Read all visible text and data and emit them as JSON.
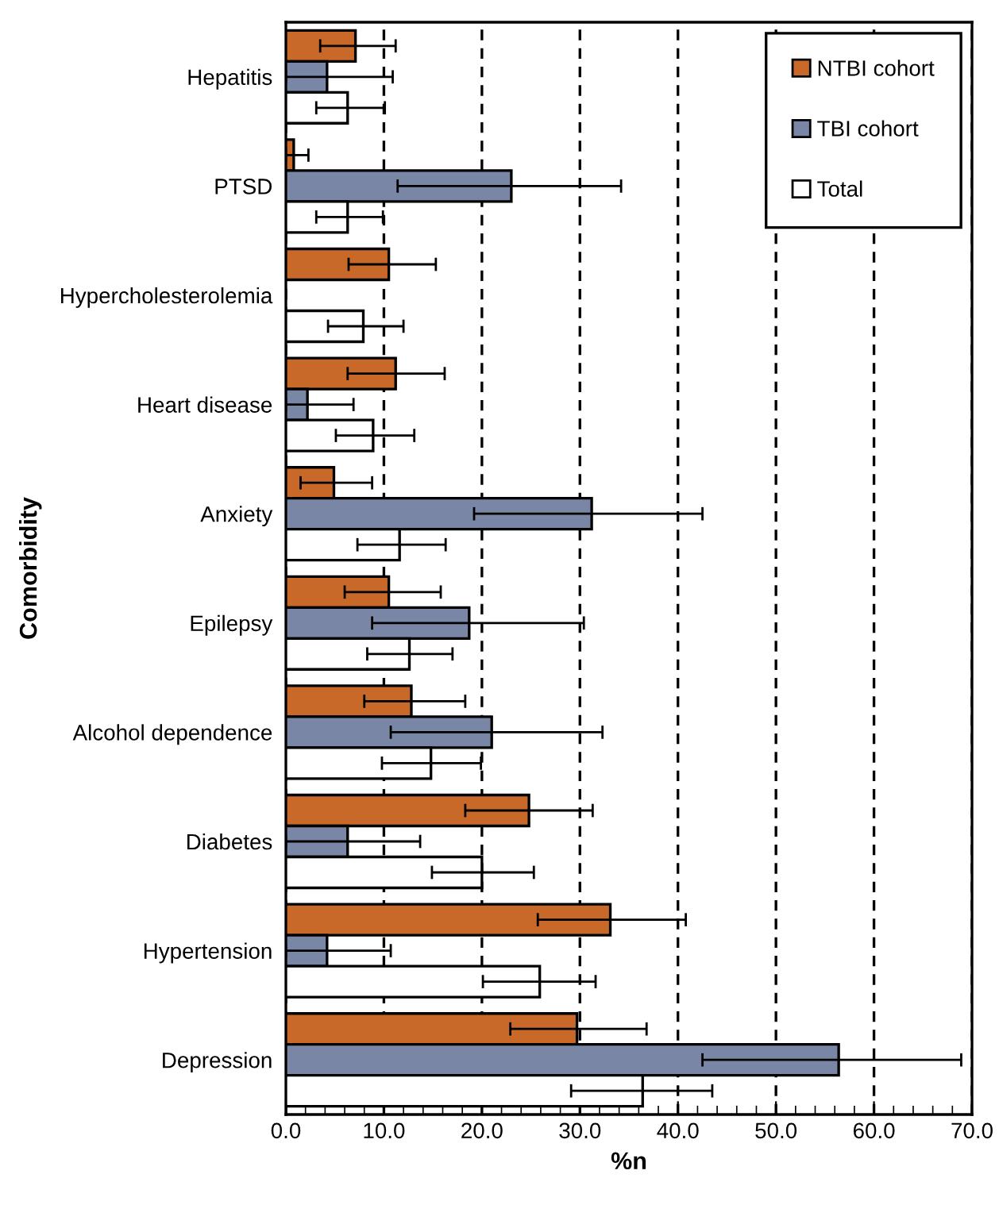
{
  "chart_data": {
    "type": "bar",
    "orientation": "horizontal",
    "xlabel": "%n",
    "ylabel": "Comorbidity",
    "categories": [
      "Hepatitis",
      "PTSD",
      "Hypercholesterolemia",
      "Heart disease",
      "Anxiety",
      "Epilepsy",
      "Alcohol dependence",
      "Diabetes",
      "Hypertension",
      "Depression"
    ],
    "series": [
      {
        "name": "NTBI cohort",
        "color": "#c8692a",
        "values": [
          7.1,
          0.8,
          10.5,
          11.2,
          4.9,
          10.5,
          12.8,
          24.8,
          33.1,
          29.7
        ],
        "errors": [
          [
            3.5,
            11.2
          ],
          [
            0.0,
            2.3
          ],
          [
            6.4,
            15.3
          ],
          [
            6.3,
            16.2
          ],
          [
            1.5,
            8.8
          ],
          [
            6.0,
            15.8
          ],
          [
            8.0,
            18.3
          ],
          [
            18.3,
            31.3
          ],
          [
            25.7,
            40.8
          ],
          [
            22.9,
            36.8
          ]
        ]
      },
      {
        "name": "TBI cohort",
        "color": "#7a86a6",
        "values": [
          4.2,
          23.0,
          null,
          2.2,
          31.2,
          18.7,
          21.0,
          6.3,
          4.2,
          56.4
        ],
        "errors": [
          [
            0.0,
            10.9
          ],
          [
            11.4,
            34.2
          ],
          null,
          [
            0.0,
            6.9
          ],
          [
            19.2,
            42.5
          ],
          [
            8.8,
            30.4
          ],
          [
            10.7,
            32.3
          ],
          [
            0.0,
            13.7
          ],
          [
            0.0,
            10.7
          ],
          [
            42.5,
            68.9
          ]
        ]
      },
      {
        "name": "Total",
        "color": "#ffffff",
        "values": [
          6.3,
          6.3,
          7.9,
          8.9,
          11.6,
          12.6,
          14.8,
          20.0,
          25.9,
          36.4
        ],
        "errors": [
          [
            3.1,
            10.1
          ],
          [
            3.1,
            9.9
          ],
          [
            4.3,
            12.0
          ],
          [
            5.1,
            13.1
          ],
          [
            7.3,
            16.3
          ],
          [
            8.3,
            17.0
          ],
          [
            9.8,
            19.9
          ],
          [
            14.9,
            25.3
          ],
          [
            20.1,
            31.6
          ],
          [
            29.1,
            43.5
          ]
        ]
      }
    ],
    "xlim": [
      0,
      70
    ],
    "xticks": [
      {
        "value": 0,
        "label": "0.0"
      },
      {
        "value": 10,
        "label": "10.0"
      },
      {
        "value": 20,
        "label": "20.0"
      },
      {
        "value": 30,
        "label": "30.0"
      },
      {
        "value": 40,
        "label": "40.0"
      },
      {
        "value": 50,
        "label": "50.0"
      },
      {
        "value": 60,
        "label": "60.0"
      },
      {
        "value": 70,
        "label": "70.0"
      }
    ],
    "grid": "x",
    "legend": "top right"
  }
}
